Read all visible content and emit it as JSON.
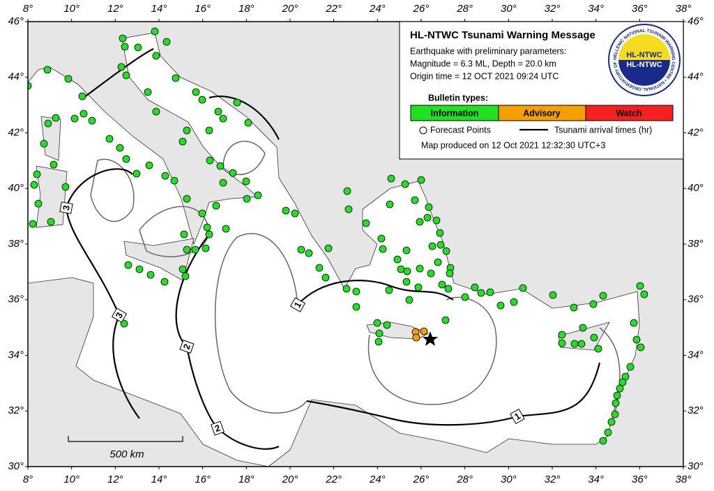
{
  "header": {
    "title": "HL-NTWC Tsunami Warning Message",
    "lines": [
      "Earthquake with preliminary parameters:",
      "Magnitude = 6.3 ML, Depth = 20.0 km",
      "Origin time = 12 OCT 2021 09:24 UTC"
    ]
  },
  "logo": {
    "top": "HL-NTWC",
    "bottom": "HL-NTWC",
    "ring": "HELLENIC NATIONAL TSUNAMI WARNING CENTRE • NATIONAL OBSERVATORY OF ATHENS •"
  },
  "bulletin": {
    "label": "Bulletin types:",
    "types": [
      "Information",
      "Advisory",
      "Watch"
    ]
  },
  "legend": {
    "points": "Forecast Points",
    "lines": "Tsunami arrival times (hr)"
  },
  "produced": "Map produced on 12 Oct 2021 12:32:30 UTC+3",
  "axes": {
    "lon_ticks": [
      "8°",
      "10°",
      "12°",
      "14°",
      "16°",
      "18°",
      "20°",
      "22°",
      "24°",
      "26°",
      "28°",
      "30°",
      "32°",
      "34°",
      "36°",
      "38°"
    ],
    "lat_ticks": [
      "46°",
      "44°",
      "42°",
      "40°",
      "38°",
      "36°",
      "34°",
      "32°",
      "30°"
    ]
  },
  "contour_labels": [
    "1",
    "1",
    "2",
    "2",
    "3",
    "3"
  ],
  "scale": "500 km"
}
